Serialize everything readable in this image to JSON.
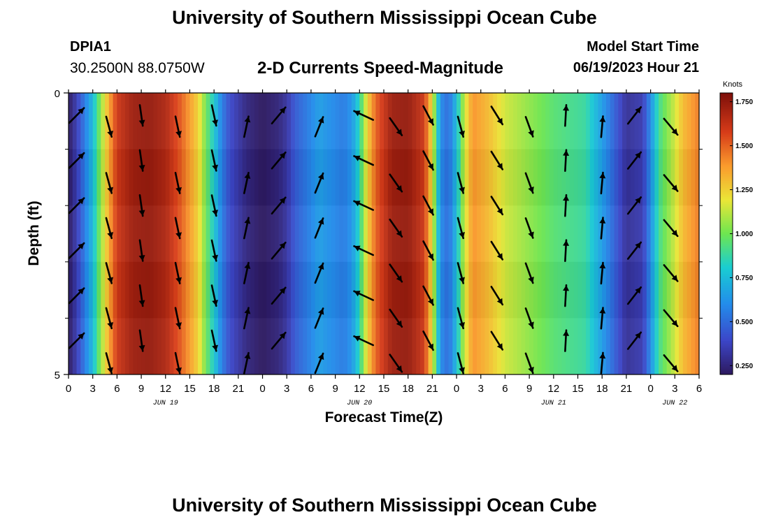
{
  "header": {
    "title": "University of Southern Mississippi Ocean Cube",
    "station": "DPIA1",
    "coords": "30.2500N  88.0750W",
    "subtitle": "2-D Currents Speed-Magnitude",
    "model_start_label": "Model Start Time",
    "model_start_value": "06/19/2023 Hour 21"
  },
  "footer": {
    "title": "University of Southern Mississippi Ocean Cube"
  },
  "chart_data": {
    "type": "heatmap",
    "title": "2-D Currents Speed-Magnitude",
    "xlabel": "Forecast Time(Z)",
    "ylabel": "Depth (ft)",
    "colorbar_label": "Knots",
    "colorbar_ticks": [
      "0.250",
      "0.500",
      "0.750",
      "1.000",
      "1.250",
      "1.500",
      "1.750"
    ],
    "colorbar_range": [
      0.2,
      1.8
    ],
    "x_tick_labels": [
      "0",
      "3",
      "6",
      "9",
      "12",
      "15",
      "18",
      "21",
      "0",
      "3",
      "6",
      "9",
      "12",
      "15",
      "18",
      "21",
      "0",
      "3",
      "6",
      "9",
      "12",
      "15",
      "18",
      "21",
      "0",
      "3",
      "6"
    ],
    "x_range_hours": [
      0,
      78
    ],
    "date_labels": [
      {
        "text": "JUN 19",
        "hour": 12
      },
      {
        "text": "JUN 20",
        "hour": 36
      },
      {
        "text": "JUN 21",
        "hour": 60
      },
      {
        "text": "JUN 22",
        "hour": 75
      }
    ],
    "y_tick_labels": [
      "0",
      "5"
    ],
    "ylim": [
      0,
      5
    ],
    "speed_profile_knots": [
      [
        0,
        0.2
      ],
      [
        1,
        0.35
      ],
      [
        2,
        0.55
      ],
      [
        3,
        0.75
      ],
      [
        4,
        1.05
      ],
      [
        5,
        1.35
      ],
      [
        6,
        1.6
      ],
      [
        8,
        1.72
      ],
      [
        10,
        1.74
      ],
      [
        12,
        1.68
      ],
      [
        14,
        1.5
      ],
      [
        16,
        1.25
      ],
      [
        17,
        1.0
      ],
      [
        18,
        0.8
      ],
      [
        19,
        0.55
      ],
      [
        20,
        0.4
      ],
      [
        22,
        0.26
      ],
      [
        24,
        0.2
      ],
      [
        26,
        0.25
      ],
      [
        27,
        0.32
      ],
      [
        28,
        0.45
      ],
      [
        30,
        0.58
      ],
      [
        31,
        0.66
      ],
      [
        32,
        0.62
      ],
      [
        34,
        0.55
      ],
      [
        35,
        0.62
      ],
      [
        36,
        0.85
      ],
      [
        37,
        1.25
      ],
      [
        38,
        1.5
      ],
      [
        40,
        1.72
      ],
      [
        42,
        1.74
      ],
      [
        44,
        1.6
      ],
      [
        45,
        1.2
      ],
      [
        46,
        0.6
      ],
      [
        47,
        0.5
      ],
      [
        48,
        0.75
      ],
      [
        49,
        1.15
      ],
      [
        50,
        1.4
      ],
      [
        52,
        1.3
      ],
      [
        54,
        1.15
      ],
      [
        57,
        1.05
      ],
      [
        60,
        0.95
      ],
      [
        64,
        0.88
      ],
      [
        66,
        0.65
      ],
      [
        68,
        0.42
      ],
      [
        69,
        0.3
      ],
      [
        71,
        0.35
      ],
      [
        72,
        0.6
      ],
      [
        73,
        0.9
      ],
      [
        75,
        1.15
      ],
      [
        76,
        1.3
      ],
      [
        78,
        1.45
      ]
    ],
    "arrow_times_hours": [
      1,
      5,
      9,
      13.5,
      18,
      22,
      26,
      31,
      36.5,
      40.5,
      44.5,
      48.5,
      53,
      57,
      61.5,
      66,
      70,
      74.5
    ],
    "arrow_headings_deg": [
      45,
      165,
      172,
      168,
      168,
      12,
      40,
      22,
      295,
      145,
      152,
      165,
      148,
      160,
      3,
      5,
      38,
      140
    ],
    "arrow_depth_rows": [
      0.4,
      0.6,
      1.2,
      1.6,
      2.0,
      2.4,
      2.8,
      3.2,
      3.6,
      4.0,
      4.4,
      4.8
    ],
    "depth_bands": 5
  }
}
